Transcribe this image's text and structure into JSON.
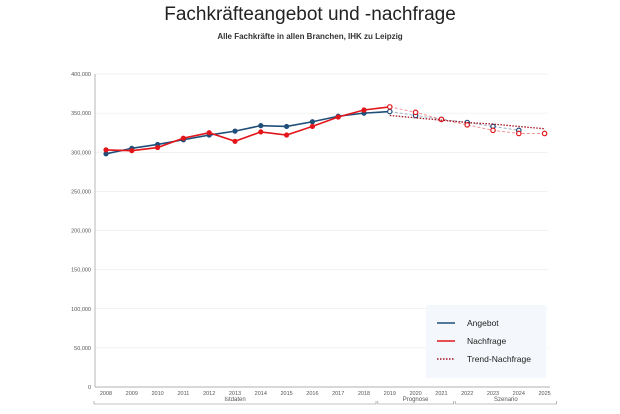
{
  "chart_data": {
    "type": "line",
    "title": "Fachkräfteangebot und -nachfrage",
    "subtitle": "Alle Fachkräfte in allen Branchen, IHK zu Leipzig",
    "x": [
      2008,
      2009,
      2010,
      2011,
      2012,
      2013,
      2014,
      2015,
      2016,
      2017,
      2018,
      2019,
      2020,
      2021,
      2022,
      2023,
      2024,
      2025
    ],
    "ylim": [
      0,
      400000
    ],
    "yticks": [
      0,
      50000,
      100000,
      150000,
      200000,
      250000,
      300000,
      350000,
      400000
    ],
    "ytick_labels": [
      "0",
      "50,000",
      "100,000",
      "150,000",
      "200,000",
      "250,000",
      "300,000",
      "350,000",
      "400,000"
    ],
    "grid": true,
    "legend_position": "bottom-right",
    "x_groups": [
      {
        "label": "Istdaten",
        "from": 2008,
        "to": 2018
      },
      {
        "label": "Prognose",
        "from": 2019,
        "to": 2021
      },
      {
        "label": "Szenario",
        "from": 2022,
        "to": 2025
      }
    ],
    "series": [
      {
        "name": "Angebot",
        "color": "#1f4e79",
        "style": "solid",
        "values": [
          298000,
          305000,
          310000,
          316000,
          322000,
          327000,
          334000,
          333000,
          339000,
          346000,
          350000,
          352000,
          347000,
          342000,
          338000,
          333000,
          328000,
          null
        ]
      },
      {
        "name": "Nachfrage",
        "color": "#e3151a",
        "style": "solid",
        "values": [
          303000,
          302000,
          306000,
          318000,
          325000,
          314000,
          326000,
          322000,
          333000,
          345000,
          354000,
          358000,
          351000,
          342000,
          335000,
          328000,
          324000,
          324000
        ]
      },
      {
        "name": "Trend-Nachfrage",
        "color": "#a0101e",
        "style": "dotted",
        "values": [
          null,
          null,
          null,
          null,
          null,
          null,
          null,
          null,
          null,
          null,
          null,
          347000,
          344000,
          341000,
          338000,
          336000,
          333000,
          330000
        ]
      }
    ]
  }
}
